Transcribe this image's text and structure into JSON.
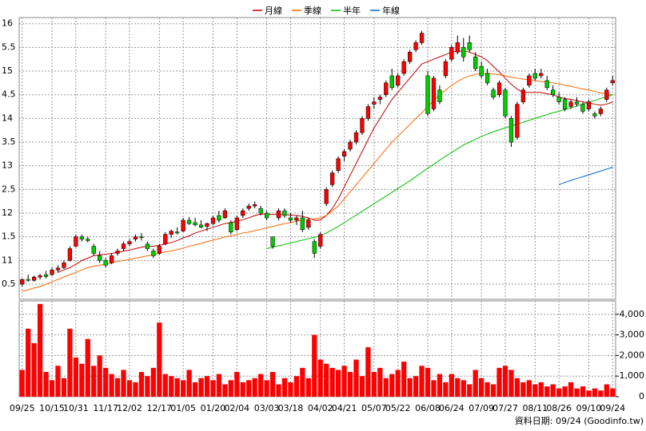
{
  "chart_data": {
    "type": "candlestick",
    "footnote": "資料日期: 09/24 (Goodinfo.tw)",
    "categories": [
      "09/25",
      null,
      null,
      null,
      null,
      "10/15",
      null,
      null,
      null,
      "10/31",
      null,
      null,
      null,
      null,
      "11/17",
      null,
      null,
      null,
      "12/02",
      null,
      null,
      null,
      null,
      "12/17",
      null,
      null,
      null,
      "01/05",
      null,
      null,
      null,
      null,
      "01/20",
      null,
      null,
      null,
      "02/04",
      null,
      null,
      null,
      null,
      "03/03",
      null,
      null,
      null,
      "03/18",
      null,
      null,
      null,
      null,
      "04/02",
      null,
      null,
      null,
      "04/21",
      null,
      null,
      null,
      null,
      "05/07",
      null,
      null,
      null,
      "05/22",
      null,
      null,
      null,
      null,
      "06/08",
      null,
      null,
      null,
      "06/24",
      null,
      null,
      null,
      null,
      "07/09",
      null,
      null,
      null,
      "07/27",
      null,
      null,
      null,
      null,
      "08/11",
      null,
      null,
      null,
      "08/26",
      null,
      null,
      null,
      null,
      "09/10",
      null,
      null,
      null,
      "09/24"
    ],
    "candles": [
      [
        10.5,
        10.62,
        10.45,
        10.6
      ],
      [
        10.6,
        10.7,
        10.55,
        10.58
      ],
      [
        10.58,
        10.68,
        10.55,
        10.65
      ],
      [
        10.65,
        10.72,
        10.6,
        10.68
      ],
      [
        10.7,
        10.78,
        10.62,
        10.66
      ],
      [
        10.7,
        10.85,
        10.68,
        10.8
      ],
      [
        10.8,
        10.9,
        10.74,
        10.84
      ],
      [
        10.85,
        11.0,
        10.82,
        10.95
      ],
      [
        11.0,
        11.3,
        10.98,
        11.25
      ],
      [
        11.3,
        11.55,
        11.28,
        11.5
      ],
      [
        11.5,
        11.55,
        11.4,
        11.45
      ],
      [
        11.45,
        11.5,
        11.38,
        11.42
      ],
      [
        11.3,
        11.35,
        11.1,
        11.15
      ],
      [
        11.1,
        11.2,
        10.95,
        11.0
      ],
      [
        11.0,
        11.05,
        10.85,
        10.9
      ],
      [
        10.95,
        11.15,
        10.92,
        11.1
      ],
      [
        11.15,
        11.25,
        11.1,
        11.2
      ],
      [
        11.25,
        11.4,
        11.2,
        11.35
      ],
      [
        11.35,
        11.45,
        11.3,
        11.4
      ],
      [
        11.45,
        11.55,
        11.4,
        11.5
      ],
      [
        11.5,
        11.58,
        11.42,
        11.48
      ],
      [
        11.35,
        11.4,
        11.2,
        11.25
      ],
      [
        11.2,
        11.25,
        11.05,
        11.1
      ],
      [
        11.15,
        11.35,
        11.12,
        11.3
      ],
      [
        11.35,
        11.6,
        11.32,
        11.55
      ],
      [
        11.55,
        11.65,
        11.48,
        11.62
      ],
      [
        11.6,
        11.7,
        11.55,
        11.58
      ],
      [
        11.62,
        11.9,
        11.6,
        11.85
      ],
      [
        11.85,
        11.92,
        11.75,
        11.78
      ],
      [
        11.8,
        11.9,
        11.72,
        11.75
      ],
      [
        11.75,
        11.85,
        11.68,
        11.7
      ],
      [
        11.72,
        11.8,
        11.62,
        11.78
      ],
      [
        11.78,
        11.95,
        11.75,
        11.9
      ],
      [
        11.95,
        12.05,
        11.8,
        11.85
      ],
      [
        11.9,
        12.1,
        11.88,
        12.05
      ],
      [
        11.8,
        11.85,
        11.55,
        11.6
      ],
      [
        11.65,
        11.95,
        11.62,
        11.9
      ],
      [
        11.95,
        12.1,
        11.9,
        12.05
      ],
      [
        12.1,
        12.2,
        12.05,
        12.15
      ],
      [
        12.15,
        12.25,
        12.1,
        12.18
      ],
      [
        12.1,
        12.15,
        11.95,
        12.0
      ],
      [
        12.0,
        12.05,
        11.85,
        11.9
      ],
      [
        11.5,
        11.5,
        11.25,
        11.3
      ],
      [
        11.9,
        12.1,
        11.85,
        12.05
      ],
      [
        12.05,
        12.1,
        11.9,
        11.95
      ],
      [
        11.9,
        12.0,
        11.8,
        11.85
      ],
      [
        11.85,
        11.95,
        11.75,
        11.9
      ],
      [
        11.9,
        12.05,
        11.6,
        11.65
      ],
      [
        11.7,
        11.9,
        11.65,
        11.85
      ],
      [
        11.4,
        11.45,
        11.05,
        11.15
      ],
      [
        11.3,
        11.6,
        11.25,
        11.55
      ],
      [
        12.2,
        12.55,
        12.15,
        12.5
      ],
      [
        12.6,
        12.9,
        12.55,
        12.85
      ],
      [
        12.9,
        13.2,
        12.85,
        13.15
      ],
      [
        13.2,
        13.35,
        13.1,
        13.3
      ],
      [
        13.35,
        13.55,
        13.3,
        13.5
      ],
      [
        13.5,
        13.75,
        13.45,
        13.7
      ],
      [
        13.7,
        14.05,
        13.65,
        14.0
      ],
      [
        14.0,
        14.3,
        13.95,
        14.25
      ],
      [
        14.3,
        14.45,
        14.2,
        14.35
      ],
      [
        14.4,
        14.5,
        14.3,
        14.45
      ],
      [
        14.5,
        14.8,
        14.45,
        14.75
      ],
      [
        14.9,
        15.05,
        14.6,
        14.65
      ],
      [
        14.7,
        14.95,
        14.65,
        14.9
      ],
      [
        14.95,
        15.25,
        14.9,
        15.2
      ],
      [
        15.2,
        15.45,
        15.15,
        15.4
      ],
      [
        15.45,
        15.65,
        15.4,
        15.6
      ],
      [
        15.6,
        15.85,
        15.55,
        15.8
      ],
      [
        14.9,
        15.0,
        14.05,
        14.1
      ],
      [
        14.2,
        14.9,
        14.15,
        14.85
      ],
      [
        14.6,
        14.7,
        14.3,
        14.35
      ],
      [
        14.9,
        15.25,
        14.85,
        15.2
      ],
      [
        15.25,
        15.55,
        15.2,
        15.5
      ],
      [
        15.4,
        15.75,
        15.35,
        15.6
      ],
      [
        15.5,
        15.7,
        15.2,
        15.3
      ],
      [
        15.6,
        15.75,
        15.4,
        15.45
      ],
      [
        15.3,
        15.4,
        15.0,
        15.05
      ],
      [
        15.1,
        15.2,
        14.85,
        14.9
      ],
      [
        14.95,
        15.05,
        14.7,
        14.75
      ],
      [
        14.6,
        14.65,
        14.4,
        14.45
      ],
      [
        14.5,
        14.8,
        14.45,
        14.75
      ],
      [
        14.6,
        14.65,
        14.0,
        14.05
      ],
      [
        14.0,
        14.05,
        13.4,
        13.5
      ],
      [
        13.6,
        14.35,
        13.55,
        14.3
      ],
      [
        14.35,
        14.65,
        14.3,
        14.6
      ],
      [
        14.7,
        14.95,
        14.65,
        14.9
      ],
      [
        14.95,
        15.05,
        14.8,
        14.85
      ],
      [
        14.9,
        15.05,
        14.85,
        14.95
      ],
      [
        14.8,
        14.9,
        14.6,
        14.65
      ],
      [
        14.6,
        14.7,
        14.45,
        14.5
      ],
      [
        14.45,
        14.55,
        14.3,
        14.35
      ],
      [
        14.4,
        14.45,
        14.15,
        14.2
      ],
      [
        14.25,
        14.4,
        14.2,
        14.35
      ],
      [
        14.35,
        14.45,
        14.25,
        14.3
      ],
      [
        14.3,
        14.35,
        14.1,
        14.15
      ],
      [
        14.2,
        14.4,
        14.15,
        14.35
      ],
      [
        14.1,
        14.15,
        14.0,
        14.05
      ],
      [
        14.1,
        14.25,
        14.05,
        14.2
      ],
      [
        14.4,
        14.65,
        14.35,
        14.6
      ],
      [
        14.75,
        14.9,
        14.7,
        14.8
      ]
    ],
    "up_color": "#ff0000",
    "down_color": "#00cc00",
    "series": [
      {
        "name": "月線",
        "color": "#c00000",
        "values": [
          null,
          null,
          null,
          null,
          null,
          null,
          10.75,
          10.8,
          10.85,
          10.92,
          11.0,
          11.05,
          11.1,
          11.12,
          11.13,
          11.15,
          11.17,
          11.2,
          11.22,
          11.25,
          11.28,
          11.3,
          11.3,
          11.32,
          11.35,
          11.38,
          11.42,
          11.48,
          11.52,
          11.58,
          11.62,
          11.66,
          11.7,
          11.74,
          11.78,
          11.8,
          11.83,
          11.86,
          11.9,
          11.95,
          11.98,
          11.98,
          11.97,
          11.97,
          11.97,
          11.96,
          11.95,
          11.93,
          11.9,
          11.85,
          11.85,
          11.95,
          12.1,
          12.3,
          12.55,
          12.8,
          13.05,
          13.3,
          13.55,
          13.8,
          14.0,
          14.2,
          14.4,
          14.55,
          14.7,
          14.85,
          15.0,
          15.15,
          15.2,
          15.25,
          15.3,
          15.35,
          15.4,
          15.42,
          15.42,
          15.4,
          15.35,
          15.3,
          15.22,
          15.1,
          14.98,
          14.85,
          14.72,
          14.62,
          14.55,
          14.55,
          14.55,
          14.55,
          14.52,
          14.5,
          14.45,
          14.42,
          14.4,
          14.38,
          14.35,
          14.33,
          14.3,
          14.28,
          14.3,
          14.35
        ]
      },
      {
        "name": "季線",
        "color": "#ff6600",
        "values": [
          10.35,
          10.38,
          10.42,
          10.45,
          10.5,
          10.55,
          10.6,
          10.65,
          10.7,
          10.75,
          10.8,
          10.85,
          10.88,
          10.9,
          10.92,
          10.95,
          10.98,
          11.0,
          11.02,
          11.05,
          11.07,
          11.1,
          11.12,
          11.15,
          11.18,
          11.2,
          11.23,
          11.26,
          11.3,
          11.33,
          11.36,
          11.4,
          11.43,
          11.46,
          11.5,
          11.52,
          11.55,
          11.58,
          11.6,
          11.63,
          11.66,
          11.69,
          11.72,
          11.75,
          11.78,
          11.8,
          11.83,
          11.85,
          11.87,
          11.88,
          11.9,
          11.95,
          12.05,
          12.15,
          12.3,
          12.45,
          12.6,
          12.75,
          12.9,
          13.05,
          13.2,
          13.35,
          13.5,
          13.62,
          13.75,
          13.87,
          14.0,
          14.12,
          14.25,
          14.38,
          14.5,
          14.6,
          14.7,
          14.78,
          14.85,
          14.9,
          14.93,
          14.95,
          14.95,
          14.94,
          14.92,
          14.9,
          14.87,
          14.85,
          14.83,
          14.82,
          14.8,
          14.78,
          14.77,
          14.75,
          14.73,
          14.7,
          14.68,
          14.65,
          14.62,
          14.6,
          14.57,
          14.54,
          14.52,
          14.5
        ]
      },
      {
        "name": "半年",
        "color": "#00c000",
        "values": [
          null,
          null,
          null,
          null,
          null,
          null,
          null,
          null,
          null,
          null,
          null,
          null,
          null,
          null,
          null,
          null,
          null,
          null,
          null,
          null,
          null,
          null,
          null,
          null,
          null,
          null,
          null,
          null,
          null,
          null,
          null,
          null,
          null,
          null,
          null,
          null,
          null,
          null,
          null,
          null,
          null,
          11.25,
          11.28,
          11.31,
          11.34,
          11.37,
          11.4,
          11.43,
          11.46,
          11.49,
          11.52,
          11.58,
          11.65,
          11.72,
          11.8,
          11.88,
          11.96,
          12.04,
          12.12,
          12.2,
          12.28,
          12.36,
          12.44,
          12.52,
          12.6,
          12.68,
          12.77,
          12.86,
          12.95,
          13.03,
          13.12,
          13.2,
          13.28,
          13.36,
          13.44,
          13.5,
          13.56,
          13.62,
          13.67,
          13.72,
          13.76,
          13.8,
          13.84,
          13.88,
          13.92,
          13.96,
          14.0,
          14.04,
          14.08,
          14.12,
          14.15,
          14.19,
          14.22,
          14.26,
          14.3,
          14.34,
          14.38,
          14.42,
          14.46,
          14.5
        ]
      },
      {
        "name": "年線",
        "color": "#0066cc",
        "values": [
          null,
          null,
          null,
          null,
          null,
          null,
          null,
          null,
          null,
          null,
          null,
          null,
          null,
          null,
          null,
          null,
          null,
          null,
          null,
          null,
          null,
          null,
          null,
          null,
          null,
          null,
          null,
          null,
          null,
          null,
          null,
          null,
          null,
          null,
          null,
          null,
          null,
          null,
          null,
          null,
          null,
          null,
          null,
          null,
          null,
          null,
          null,
          null,
          null,
          null,
          null,
          null,
          null,
          null,
          null,
          null,
          null,
          null,
          null,
          null,
          null,
          null,
          null,
          null,
          null,
          null,
          null,
          null,
          null,
          null,
          null,
          null,
          null,
          null,
          null,
          null,
          null,
          null,
          null,
          null,
          null,
          null,
          null,
          null,
          null,
          null,
          null,
          null,
          null,
          null,
          12.6,
          12.65,
          12.69,
          12.73,
          12.77,
          12.81,
          12.85,
          12.89,
          12.93,
          12.97
        ]
      }
    ],
    "volumes": [
      1300,
      3300,
      2600,
      4500,
      1200,
      800,
      1500,
      900,
      3300,
      1900,
      1600,
      2800,
      1500,
      2000,
      1400,
      1100,
      900,
      1300,
      800,
      700,
      1200,
      1000,
      1400,
      3600,
      1100,
      1000,
      900,
      800,
      1300,
      700,
      900,
      1000,
      800,
      1100,
      600,
      800,
      1200,
      700,
      800,
      900,
      1100,
      800,
      1200,
      600,
      900,
      700,
      1000,
      1400,
      900,
      3000,
      1800,
      1600,
      1400,
      1300,
      1500,
      1200,
      1800,
      1000,
      2400,
      1200,
      1400,
      900,
      1100,
      1300,
      1700,
      900,
      1000,
      1500,
      1400,
      800,
      1100,
      700,
      1100,
      900,
      800,
      600,
      1300,
      900,
      700,
      600,
      1400,
      1500,
      1300,
      900,
      700,
      800,
      600,
      700,
      500,
      600,
      400,
      500,
      700,
      400,
      500,
      300,
      400,
      300,
      600,
      400
    ],
    "volume_color": "#ff0000",
    "ylim": [
      10.18,
      16.13
    ],
    "yticks": [
      {
        "value": 10.5,
        "label": "0.5"
      },
      11,
      {
        "value": 11.5,
        "label": "1.5"
      },
      12,
      {
        "value": 12.5,
        "label": "2.5"
      },
      13,
      {
        "value": 13.5,
        "label": "3.5"
      },
      14,
      {
        "value": 14.5,
        "label": "4.5"
      },
      15,
      {
        "value": 15.5,
        "label": "5.5"
      },
      16
    ],
    "y2lim": [
      0,
      4650
    ],
    "y2ticks": [
      0,
      {
        "value": 1000,
        "label": "1,000"
      },
      {
        "value": 2000,
        "label": "2,000"
      },
      {
        "value": 3000,
        "label": "3,000"
      },
      {
        "value": 4000,
        "label": "4,000"
      }
    ],
    "grid": true
  }
}
